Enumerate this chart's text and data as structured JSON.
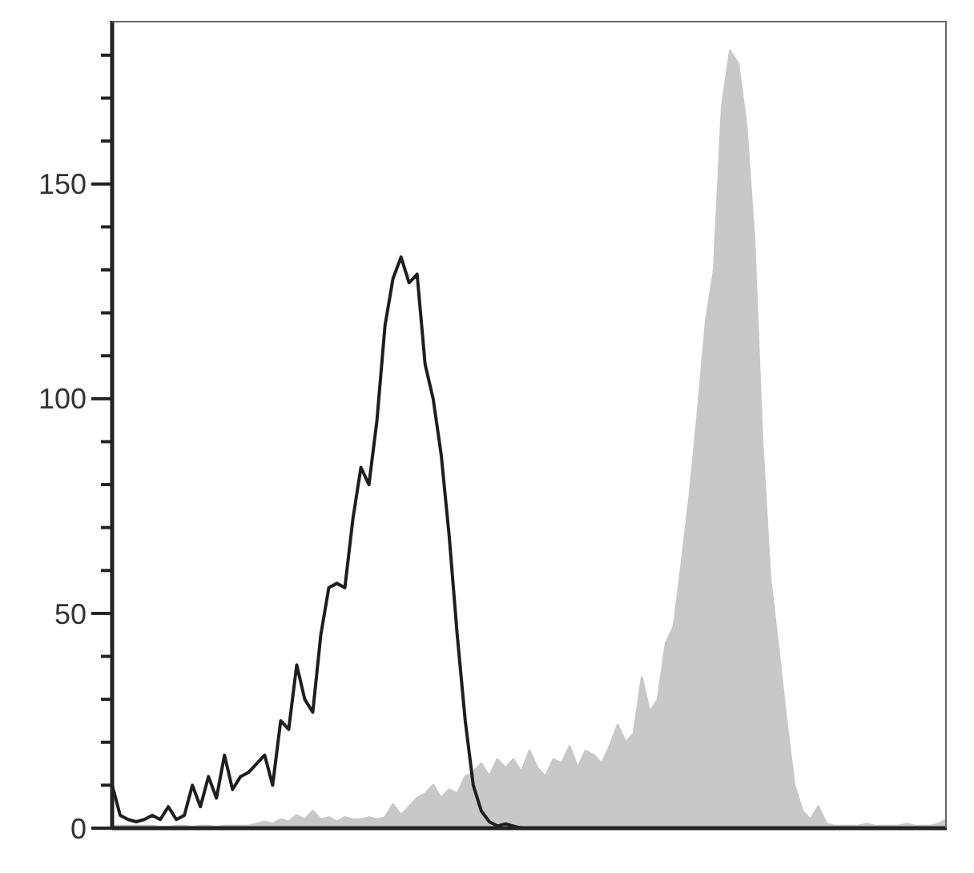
{
  "chart_data": {
    "type": "line",
    "categories": [
      null,
      null,
      null,
      null,
      null,
      null,
      null,
      null,
      null,
      null,
      null,
      null,
      null,
      null,
      null,
      null,
      null,
      null,
      null,
      null,
      null,
      null,
      null,
      null,
      null,
      null,
      null,
      null,
      null,
      null,
      null,
      null,
      null,
      null,
      null,
      null,
      null,
      null,
      null,
      null,
      null,
      null,
      null,
      null,
      null,
      null,
      null,
      null,
      null,
      null,
      null,
      null,
      null,
      null,
      null,
      null,
      null,
      null,
      null,
      null,
      null,
      null,
      null,
      null,
      null,
      null,
      null,
      null,
      null,
      null,
      null,
      null,
      null,
      null,
      null,
      null,
      null,
      null,
      null,
      null,
      null,
      null,
      null,
      null,
      null,
      null,
      null,
      null,
      null,
      null,
      null,
      null,
      null,
      null,
      null,
      null,
      null,
      null,
      null,
      null,
      null,
      null,
      null,
      null,
      null
    ],
    "series": [
      {
        "type": "area",
        "color": "#c8c8c8",
        "values": [
          0.5,
          0.5,
          0.5,
          0.5,
          0.5,
          0.5,
          0.3,
          0.3,
          0.5,
          0.5,
          0.3,
          0.5,
          0.5,
          0.3,
          0.5,
          0.5,
          0.5,
          0.5,
          1,
          1.5,
          1,
          2,
          1.5,
          3,
          2,
          4,
          2,
          2.5,
          1.5,
          2.5,
          2,
          2,
          2.5,
          2,
          2.5,
          5.5,
          3,
          5,
          7,
          8,
          10,
          7,
          9,
          8,
          12,
          13,
          15,
          12,
          16,
          14,
          16,
          13,
          18,
          14,
          12,
          16,
          15,
          19,
          14,
          18,
          17,
          15,
          19,
          24,
          20,
          22,
          35,
          27,
          30,
          43,
          47,
          62,
          78,
          97,
          118,
          130,
          168,
          181,
          178,
          164,
          137,
          90,
          58,
          42,
          25,
          10,
          4,
          2,
          5,
          1,
          0.5,
          0.5,
          0.5,
          0.5,
          1,
          0.5,
          0.5,
          0.5,
          0.5,
          1,
          0.5,
          0.5,
          0.5,
          1,
          2
        ]
      },
      {
        "color": "#1e1e1e",
        "values": [
          10,
          3,
          2,
          1.5,
          2,
          3,
          2,
          5,
          2,
          3,
          10,
          5,
          12,
          7,
          17,
          9,
          12,
          13,
          15,
          17,
          10,
          25,
          23,
          38,
          30,
          27,
          45,
          56,
          57,
          56,
          72,
          84,
          80,
          95,
          117,
          128,
          133,
          127,
          129,
          108,
          100,
          87,
          68,
          45,
          25,
          10,
          4,
          1.5,
          0.5,
          1,
          0.5,
          0,
          0,
          0,
          0,
          0,
          0,
          0,
          0,
          0,
          0,
          0,
          0,
          0,
          0,
          0,
          0,
          0,
          0,
          0,
          0,
          0,
          0,
          0,
          0,
          0,
          0,
          0,
          0,
          0,
          0,
          0,
          0,
          0,
          0,
          0,
          0,
          0,
          0,
          0,
          0,
          0,
          0,
          0,
          0,
          0,
          0,
          0,
          0,
          0,
          0,
          0,
          0,
          0,
          0
        ]
      }
    ],
    "ylim": [
      0,
      188
    ],
    "yticks": [
      0,
      {
        "value": 10,
        "label": null
      },
      {
        "value": 20,
        "label": null
      },
      {
        "value": 30,
        "label": null
      },
      {
        "value": 40,
        "label": null
      },
      50,
      {
        "value": 60,
        "label": null
      },
      {
        "value": 70,
        "label": null
      },
      {
        "value": 80,
        "label": null
      },
      {
        "value": 90,
        "label": null
      },
      100,
      {
        "value": 110,
        "label": null
      },
      {
        "value": 120,
        "label": null
      },
      {
        "value": 130,
        "label": null
      },
      {
        "value": 140,
        "label": null
      },
      150,
      {
        "value": 160,
        "label": null
      },
      {
        "value": 170,
        "label": null
      },
      {
        "value": 180,
        "label": null
      }
    ]
  }
}
